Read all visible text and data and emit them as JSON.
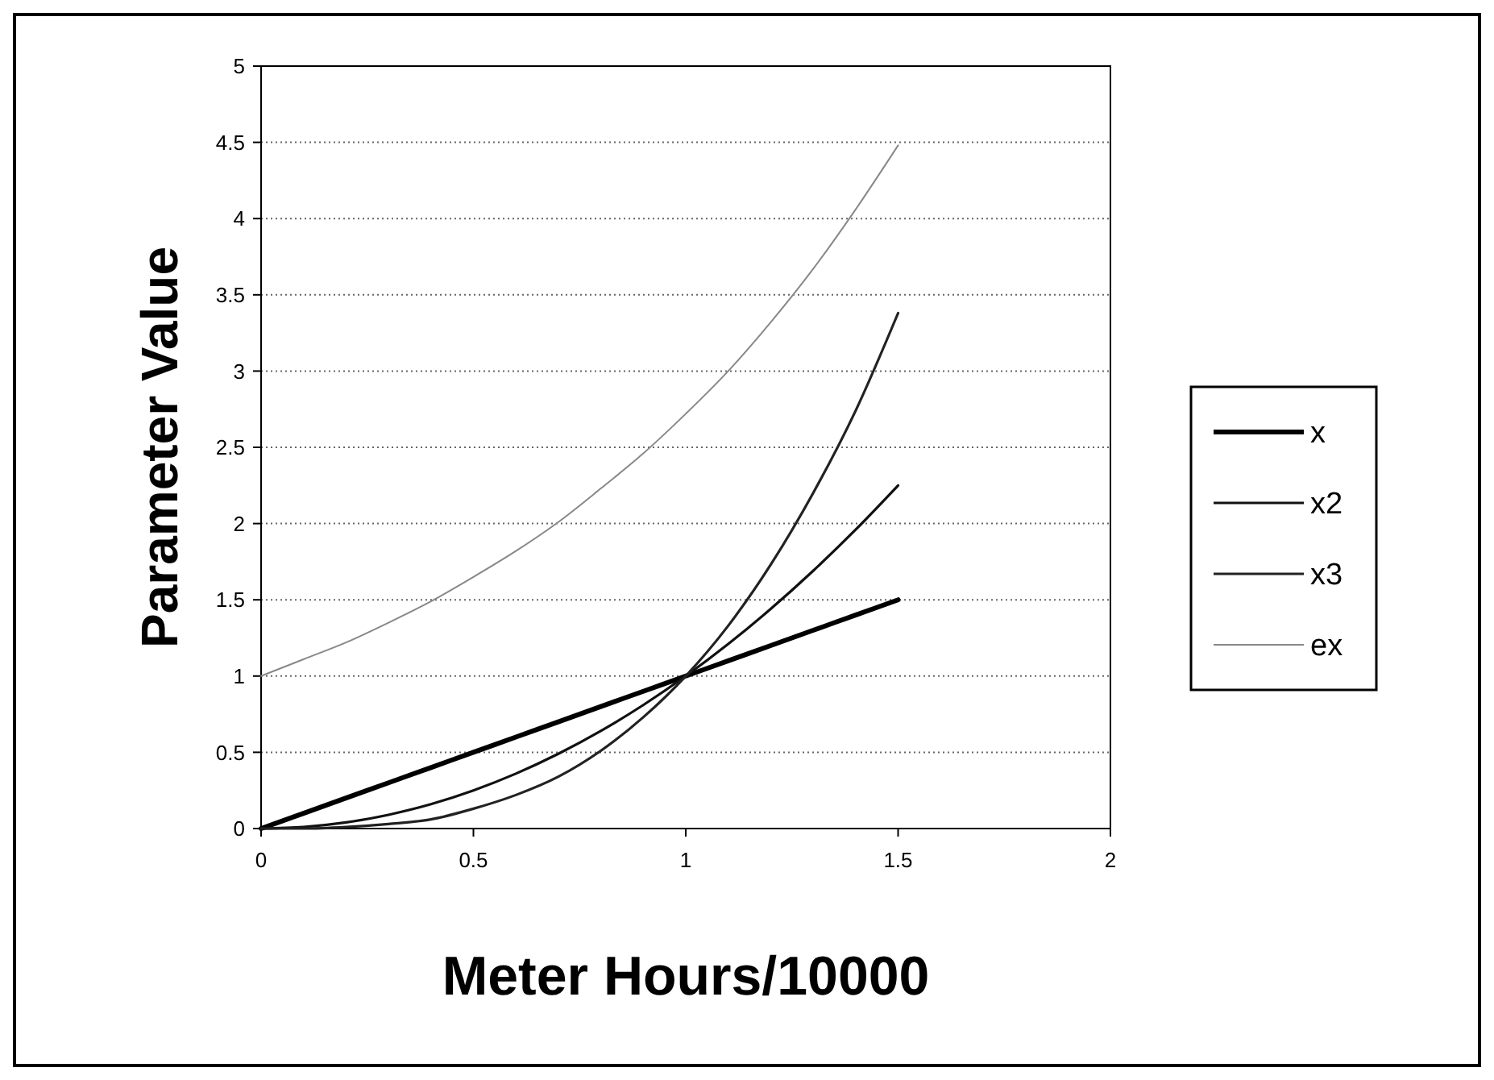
{
  "chart_data": {
    "type": "line",
    "xlabel": "Meter Hours/10000",
    "ylabel": "Parameter Value",
    "x": [
      0,
      0.1,
      0.2,
      0.3,
      0.4,
      0.5,
      0.6,
      0.7,
      0.8,
      0.9,
      1,
      1.1,
      1.2,
      1.3,
      1.4,
      1.5
    ],
    "series": [
      {
        "name": "x",
        "color": "#000000",
        "values": [
          0,
          0.1,
          0.2,
          0.3,
          0.4,
          0.5,
          0.6,
          0.7,
          0.8,
          0.9,
          1,
          1.1,
          1.2,
          1.3,
          1.4,
          1.5
        ]
      },
      {
        "name": "x2",
        "color": "#111111",
        "values": [
          0,
          0.01,
          0.04,
          0.09,
          0.16,
          0.25,
          0.36,
          0.49,
          0.64,
          0.81,
          1,
          1.21,
          1.44,
          1.69,
          1.96,
          2.25
        ]
      },
      {
        "name": "x3",
        "color": "#222222",
        "values": [
          0,
          0,
          0.01,
          0.03,
          0.06,
          0.13,
          0.22,
          0.34,
          0.51,
          0.73,
          1,
          1.33,
          1.73,
          2.2,
          2.74,
          3.38
        ]
      },
      {
        "name": "ex",
        "color": "#888888",
        "values": [
          1,
          1.11,
          1.22,
          1.35,
          1.49,
          1.65,
          1.82,
          2.01,
          2.23,
          2.46,
          2.72,
          3.0,
          3.32,
          3.67,
          4.06,
          4.48
        ]
      }
    ],
    "xlim": [
      0,
      2
    ],
    "xticks": [
      0,
      0.5,
      1,
      1.5,
      2
    ],
    "ylim": [
      0,
      5
    ],
    "yticks": [
      0,
      0.5,
      1,
      1.5,
      2,
      2.5,
      3,
      3.5,
      4,
      4.5,
      5
    ],
    "grid": "y",
    "legend": "right",
    "marker": "none",
    "line_style": "solid"
  }
}
